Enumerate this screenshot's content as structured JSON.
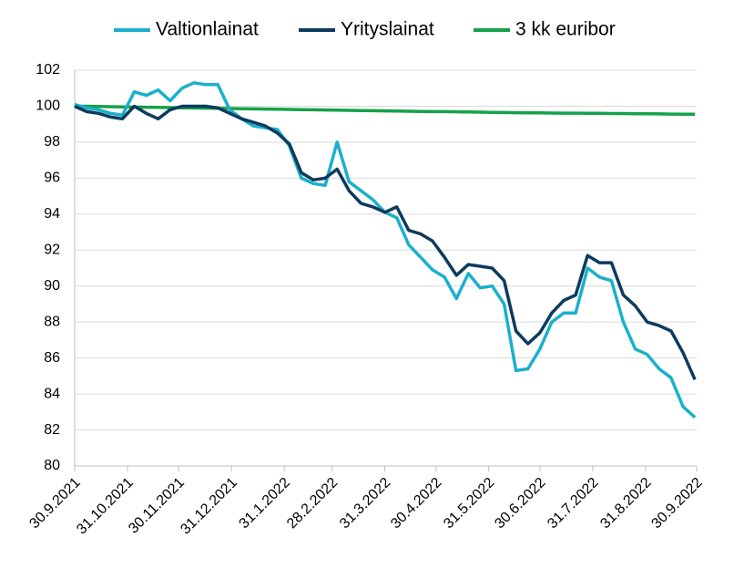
{
  "chart_data": {
    "type": "line",
    "x": [
      "2021-09-30",
      "2021-10-07",
      "2021-10-14",
      "2021-10-21",
      "2021-10-28",
      "2021-11-04",
      "2021-11-11",
      "2021-11-18",
      "2021-11-25",
      "2021-12-02",
      "2021-12-09",
      "2021-12-16",
      "2021-12-23",
      "2021-12-30",
      "2022-01-06",
      "2022-01-13",
      "2022-01-20",
      "2022-01-27",
      "2022-02-03",
      "2022-02-10",
      "2022-02-17",
      "2022-02-24",
      "2022-03-03",
      "2022-03-10",
      "2022-03-17",
      "2022-03-24",
      "2022-03-31",
      "2022-04-07",
      "2022-04-14",
      "2022-04-21",
      "2022-04-28",
      "2022-05-05",
      "2022-05-12",
      "2022-05-19",
      "2022-05-26",
      "2022-06-02",
      "2022-06-09",
      "2022-06-16",
      "2022-06-23",
      "2022-06-30",
      "2022-07-07",
      "2022-07-14",
      "2022-07-21",
      "2022-07-28",
      "2022-08-04",
      "2022-08-11",
      "2022-08-18",
      "2022-08-25",
      "2022-09-01",
      "2022-09-08",
      "2022-09-15",
      "2022-09-22",
      "2022-09-29"
    ],
    "series": [
      {
        "name": "Valtionlainat",
        "color": "#1ab0cc",
        "values": [
          100.1,
          99.9,
          99.8,
          99.6,
          99.5,
          100.8,
          100.6,
          100.9,
          100.3,
          101.0,
          101.3,
          101.2,
          101.2,
          99.8,
          99.3,
          98.9,
          98.8,
          98.7,
          97.8,
          96.0,
          95.7,
          95.6,
          98.0,
          95.8,
          95.3,
          94.8,
          94.1,
          93.8,
          92.3,
          91.6,
          90.9,
          90.5,
          89.3,
          90.7,
          89.9,
          90.0,
          89.0,
          85.3,
          85.4,
          86.5,
          88.0,
          88.5,
          88.5,
          91.0,
          90.5,
          90.3,
          88.0,
          86.5,
          86.2,
          85.4,
          84.9,
          83.3,
          82.7
        ]
      },
      {
        "name": "Yrityslainat",
        "color": "#0d3b5e",
        "values": [
          100.0,
          99.7,
          99.6,
          99.4,
          99.3,
          100.0,
          99.6,
          99.3,
          99.8,
          100.0,
          100.0,
          100.0,
          99.9,
          99.6,
          99.3,
          99.1,
          98.9,
          98.5,
          97.9,
          96.3,
          95.9,
          96.0,
          96.5,
          95.3,
          94.6,
          94.4,
          94.1,
          94.4,
          93.1,
          92.9,
          92.5,
          91.6,
          90.6,
          91.2,
          91.1,
          91.0,
          90.3,
          87.5,
          86.8,
          87.4,
          88.5,
          89.2,
          89.5,
          91.7,
          91.3,
          91.3,
          89.5,
          88.9,
          88.0,
          87.8,
          87.5,
          86.3,
          84.8
        ]
      },
      {
        "name": "3 kk euribor",
        "color": "#15a14a",
        "values": [
          100.0,
          100.0,
          99.98,
          99.97,
          99.96,
          99.95,
          99.94,
          99.93,
          99.92,
          99.91,
          99.9,
          99.89,
          99.88,
          99.87,
          99.86,
          99.85,
          99.84,
          99.83,
          99.82,
          99.81,
          99.8,
          99.79,
          99.78,
          99.77,
          99.76,
          99.75,
          99.74,
          99.73,
          99.72,
          99.71,
          99.7,
          99.7,
          99.69,
          99.68,
          99.67,
          99.66,
          99.65,
          99.64,
          99.63,
          99.63,
          99.62,
          99.61,
          99.61,
          99.6,
          99.6,
          99.59,
          99.59,
          99.58,
          99.58,
          99.57,
          99.56,
          99.55,
          99.55
        ]
      }
    ],
    "xlim": [
      "2021-09-30",
      "2022-09-30"
    ],
    "xticks": [
      {
        "value": "2021-09-30",
        "label": "30.9.2021"
      },
      {
        "value": "2021-10-31",
        "label": "31.10.2021"
      },
      {
        "value": "2021-11-30",
        "label": "30.11.2021"
      },
      {
        "value": "2021-12-31",
        "label": "31.12.2021"
      },
      {
        "value": "2022-01-31",
        "label": "31.1.2022"
      },
      {
        "value": "2022-02-28",
        "label": "28.2.2022"
      },
      {
        "value": "2022-03-31",
        "label": "31.3.2022"
      },
      {
        "value": "2022-04-30",
        "label": "30.4.2022"
      },
      {
        "value": "2022-05-31",
        "label": "31.5.2022"
      },
      {
        "value": "2022-06-30",
        "label": "30.6.2022"
      },
      {
        "value": "2022-07-31",
        "label": "31.7.2022"
      },
      {
        "value": "2022-08-31",
        "label": "31.8.2022"
      },
      {
        "value": "2022-09-30",
        "label": "30.9.2022"
      }
    ],
    "ylim": [
      80,
      102
    ],
    "yticks": [
      80,
      82,
      84,
      86,
      88,
      90,
      92,
      94,
      96,
      98,
      100,
      102
    ],
    "grid": true,
    "legend": "top"
  }
}
